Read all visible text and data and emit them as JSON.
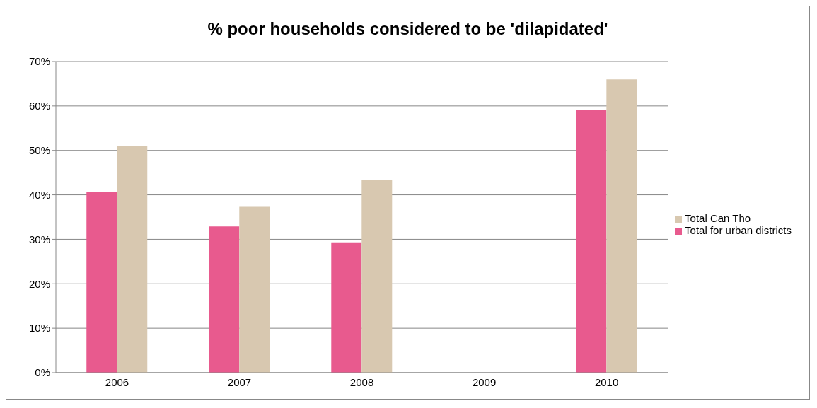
{
  "chart_data": {
    "type": "bar",
    "title": "% poor households considered to be 'dilapidated'",
    "categories": [
      "2006",
      "2007",
      "2008",
      "2009",
      "2010"
    ],
    "series": [
      {
        "name": "Total for urban districts",
        "color": "#e85a8e",
        "values": [
          0.406,
          0.329,
          0.293,
          null,
          0.592
        ]
      },
      {
        "name": "Total Can Tho",
        "color": "#d8c8b0",
        "values": [
          0.51,
          0.373,
          0.434,
          null,
          0.66
        ]
      }
    ],
    "ylim": [
      0,
      0.7
    ],
    "yticks": [
      {
        "value": 0,
        "label": "0%"
      },
      {
        "value": 0.1,
        "label": "10%"
      },
      {
        "value": 0.2,
        "label": "20%"
      },
      {
        "value": 0.3,
        "label": "30%"
      },
      {
        "value": 0.4,
        "label": "40%"
      },
      {
        "value": 0.5,
        "label": "50%"
      },
      {
        "value": 0.6,
        "label": "60%"
      },
      {
        "value": 0.7,
        "label": "70%"
      }
    ],
    "grid": "y",
    "legend": "right"
  }
}
